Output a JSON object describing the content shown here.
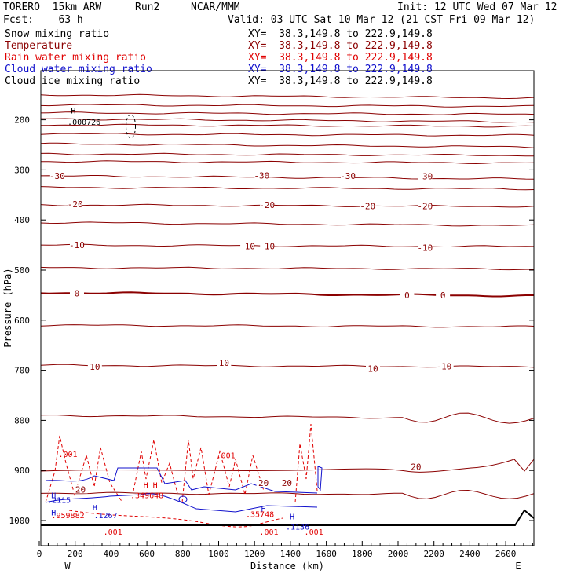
{
  "header": {
    "model": "TORERO  15km ARW",
    "run": "Run2",
    "org": "NCAR/MMM",
    "init": "Init: 12 UTC Wed 07 Mar 12",
    "fcst": "Fcst:    63 h",
    "valid": "Valid: 03 UTC Sat 10 Mar 12 (21 CST Fri 09 Mar 12)"
  },
  "colors": {
    "snow": "#000000",
    "temperature": "#8b0000",
    "rain": "#e00000",
    "cloud_water": "#1010cc",
    "cloud_ice": "#000000"
  },
  "chart_data": {
    "type": "cross-section contour",
    "title": "",
    "xlabel": "Distance (km)",
    "ylabel": "Pressure (hPa)",
    "xlim": [
      0,
      2750
    ],
    "ylim": [
      1050,
      100
    ],
    "x_ticks": [
      "0",
      "200",
      "400",
      "600",
      "800",
      "1000",
      "1200",
      "1400",
      "1600",
      "1800",
      "2000",
      "2200",
      "2400",
      "2600"
    ],
    "y_ticks": [
      "200",
      "300",
      "400",
      "500",
      "600",
      "700",
      "800",
      "900",
      "1000"
    ],
    "endpoints": {
      "left": "W",
      "right": "E"
    },
    "legend": [
      {
        "name": "Snow mixing ratio",
        "xy": "XY=  38.3,149.8 to 222.9,149.8"
      },
      {
        "name": "Temperature",
        "xy": "XY=  38.3,149.8 to 222.9,149.8"
      },
      {
        "name": "Rain water mixing ratio",
        "xy": "XY=  38.3,149.8 to 222.9,149.8"
      },
      {
        "name": "Cloud water mixing ratio",
        "xy": "XY=  38.3,149.8 to 222.9,149.8"
      },
      {
        "name": "Cloud ice mixing ratio",
        "xy": "XY=  38.3,149.8 to 222.9,149.8"
      }
    ],
    "temperature_contours": [
      {
        "p": 150,
        "label": ""
      },
      {
        "p": 170,
        "label": ""
      },
      {
        "p": 186,
        "label": ""
      },
      {
        "p": 198,
        "label": ""
      },
      {
        "p": 210,
        "label": ""
      },
      {
        "p": 228,
        "label": ""
      },
      {
        "p": 248,
        "label": ""
      },
      {
        "p": 268,
        "label": ""
      },
      {
        "p": 283,
        "label": ""
      },
      {
        "p": 312,
        "label": "-30"
      },
      {
        "p": 335,
        "label": ""
      },
      {
        "p": 370,
        "label": "-20"
      },
      {
        "p": 405,
        "label": ""
      },
      {
        "p": 450,
        "label": "-10"
      },
      {
        "p": 495,
        "label": ""
      },
      {
        "p": 545,
        "label": "0"
      },
      {
        "p": 610,
        "label": ""
      },
      {
        "p": 690,
        "label": "10"
      },
      {
        "p": 790,
        "label": ""
      },
      {
        "p": 945,
        "label": "20"
      }
    ],
    "temperature_labels": [
      {
        "x": 100,
        "p": 312,
        "text": "-30"
      },
      {
        "x": 1240,
        "p": 311,
        "text": "-30"
      },
      {
        "x": 1720,
        "p": 312,
        "text": "-30"
      },
      {
        "x": 2150,
        "p": 313,
        "text": "-30"
      },
      {
        "x": 200,
        "p": 368,
        "text": "-20"
      },
      {
        "x": 1270,
        "p": 370,
        "text": "-20"
      },
      {
        "x": 1830,
        "p": 372,
        "text": "-20"
      },
      {
        "x": 2150,
        "p": 372,
        "text": "-20"
      },
      {
        "x": 210,
        "p": 450,
        "text": "-10"
      },
      {
        "x": 1160,
        "p": 452,
        "text": "-10"
      },
      {
        "x": 1270,
        "p": 452,
        "text": "-10"
      },
      {
        "x": 2150,
        "p": 455,
        "text": "-10"
      },
      {
        "x": 210,
        "p": 546,
        "text": "0"
      },
      {
        "x": 2050,
        "p": 550,
        "text": "0"
      },
      {
        "x": 2250,
        "p": 550,
        "text": "0"
      },
      {
        "x": 310,
        "p": 693,
        "text": "10"
      },
      {
        "x": 1030,
        "p": 685,
        "text": "10"
      },
      {
        "x": 1860,
        "p": 697,
        "text": "10"
      },
      {
        "x": 2270,
        "p": 692,
        "text": "10"
      },
      {
        "x": 1250,
        "p": 925,
        "text": "20"
      },
      {
        "x": 1380,
        "p": 925,
        "text": "20"
      },
      {
        "x": 2100,
        "p": 893,
        "text": "20"
      },
      {
        "x": 230,
        "p": 938,
        "text": "20"
      }
    ],
    "annotations": [
      {
        "x": 190,
        "p": 187,
        "text": "H",
        "series": "snow"
      },
      {
        "x": 250,
        "p": 210,
        "text": ".000726",
        "series": "snow"
      },
      {
        "x": 160,
        "p": 873,
        "text": ".001",
        "series": "rain"
      },
      {
        "x": 1040,
        "p": 875,
        "text": ".001",
        "series": "rain"
      },
      {
        "x": 620,
        "p": 935,
        "text": "H H",
        "series": "rain"
      },
      {
        "x": 600,
        "p": 955,
        "text": ".349648",
        "series": "rain"
      },
      {
        "x": 1230,
        "p": 993,
        "text": ".35748",
        "series": "rain"
      },
      {
        "x": 160,
        "p": 995,
        "text": ".959882",
        "series": "rain"
      },
      {
        "x": 410,
        "p": 1028,
        "text": ".001",
        "series": "rain"
      },
      {
        "x": 1280,
        "p": 1028,
        "text": ".001",
        "series": "rain"
      },
      {
        "x": 1530,
        "p": 1028,
        "text": ".001",
        "series": "rain"
      },
      {
        "x": 80,
        "p": 955,
        "text": "H",
        "series": "cloud_water"
      },
      {
        "x": 110,
        "p": 965,
        "text": ".2115",
        "series": "cloud_water"
      },
      {
        "x": 80,
        "p": 990,
        "text": "H",
        "series": "cloud_water"
      },
      {
        "x": 310,
        "p": 980,
        "text": "H",
        "series": "cloud_water"
      },
      {
        "x": 370,
        "p": 995,
        "text": ".1267",
        "series": "cloud_water"
      },
      {
        "x": 1250,
        "p": 982,
        "text": "H",
        "series": "cloud_water"
      },
      {
        "x": 1410,
        "p": 998,
        "text": "H",
        "series": "cloud_water"
      },
      {
        "x": 1440,
        "p": 1018,
        "text": ".1136",
        "series": "cloud_water"
      }
    ]
  }
}
